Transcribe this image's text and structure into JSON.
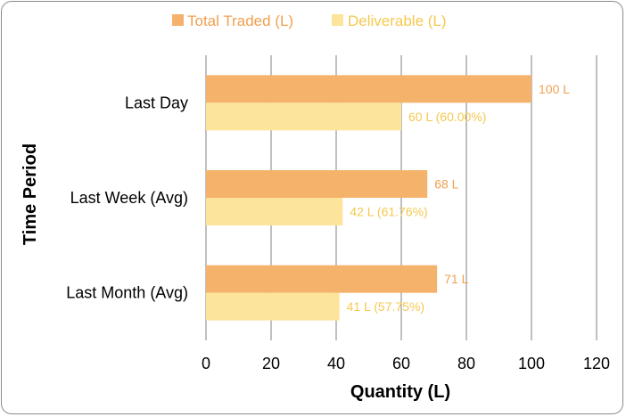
{
  "chart_data": {
    "type": "bar",
    "orientation": "horizontal",
    "title": "",
    "xlabel": "Quantity (L)",
    "ylabel": "Time Period",
    "xlim": [
      0,
      120
    ],
    "xticks": [
      0,
      20,
      40,
      60,
      80,
      100,
      120
    ],
    "grid": "vertical",
    "legend_position": "top",
    "categories": [
      "Last Day",
      "Last Week (Avg)",
      "Last Month (Avg)"
    ],
    "series": [
      {
        "name": "Total Traded (L)",
        "color": "#f4b26b",
        "label_color": "#f0a050",
        "values": [
          100,
          68,
          71
        ],
        "labels": [
          "100 L",
          "68 L",
          "71 L"
        ]
      },
      {
        "name": "Deliverable (L)",
        "color": "#fde49b",
        "label_color": "#f4c94f",
        "values": [
          60,
          42,
          41
        ],
        "labels": [
          "60 L (60.00%)",
          "42 L (61.76%)",
          "41 L (57.75%)"
        ]
      }
    ]
  }
}
